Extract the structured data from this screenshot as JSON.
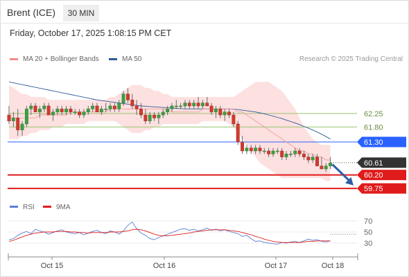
{
  "header": {
    "instrument": "Brent (ICE)",
    "timeframe": "30 MIN"
  },
  "datetime": "Friday, October 17, 2025 1:08:15 PM CET",
  "legend": {
    "ma20": {
      "label": "MA 20 + Bollinger Bands",
      "color": "#f08a8a"
    },
    "ma50": {
      "label": "MA 50",
      "color": "#2e5a96"
    }
  },
  "credit": "Research © 2025 Trading Central",
  "chart_data": [
    {
      "type": "candlestick",
      "x_ticks": [
        "Oct 15",
        "Oct 16",
        "Oct 17",
        "Oct 18"
      ],
      "levels": [
        {
          "value": 62.25,
          "label": "62.25",
          "color": "#97c46e",
          "style": "thin"
        },
        {
          "value": 61.8,
          "label": "61.80",
          "color": "#97c46e",
          "style": "thin"
        },
        {
          "value": 61.3,
          "label": "61.30",
          "color": "#2962ff",
          "style": "tag"
        },
        {
          "value": 60.61,
          "label": "60.61",
          "color": "#333333",
          "style": "dotted-tag"
        },
        {
          "value": 60.2,
          "label": "60.20",
          "color": "#e01b1b",
          "style": "thick-tag"
        },
        {
          "value": 59.75,
          "label": "59.75",
          "color": "#e01b1b",
          "style": "thick-tag"
        }
      ],
      "y_range": [
        59.5,
        63.7
      ],
      "last_price": 60.61,
      "forecast_arrow": {
        "from": 60.55,
        "to": 59.85,
        "color": "#2b5fa6"
      },
      "ohlc": [
        [
          62.2,
          62.5,
          61.9,
          62.0
        ],
        [
          62.0,
          62.3,
          61.8,
          62.1
        ],
        [
          62.1,
          62.4,
          61.5,
          61.7
        ],
        [
          61.7,
          62.0,
          61.5,
          61.9
        ],
        [
          61.9,
          62.5,
          61.8,
          62.4
        ],
        [
          62.4,
          62.6,
          62.2,
          62.5
        ],
        [
          62.5,
          62.6,
          62.3,
          62.3
        ],
        [
          62.3,
          62.5,
          62.1,
          62.4
        ],
        [
          62.4,
          62.6,
          62.3,
          62.5
        ],
        [
          62.5,
          62.6,
          62.2,
          62.2
        ],
        [
          62.2,
          62.4,
          62.0,
          62.3
        ],
        [
          62.3,
          62.5,
          62.2,
          62.4
        ],
        [
          62.4,
          62.5,
          62.2,
          62.3
        ],
        [
          62.3,
          62.5,
          62.2,
          62.4
        ],
        [
          62.4,
          62.5,
          62.2,
          62.3
        ],
        [
          62.3,
          62.4,
          62.2,
          62.3
        ],
        [
          62.3,
          62.4,
          62.1,
          62.2
        ],
        [
          62.2,
          62.4,
          62.1,
          62.3
        ],
        [
          62.3,
          62.5,
          62.2,
          62.4
        ],
        [
          62.4,
          62.6,
          62.3,
          62.5
        ],
        [
          62.5,
          62.6,
          62.3,
          62.3
        ],
        [
          62.3,
          62.5,
          62.2,
          62.4
        ],
        [
          62.4,
          62.6,
          62.3,
          62.4
        ],
        [
          62.4,
          62.6,
          62.3,
          62.5
        ],
        [
          62.5,
          62.6,
          62.3,
          62.4
        ],
        [
          62.4,
          62.7,
          62.3,
          62.6
        ],
        [
          62.6,
          63.0,
          62.5,
          62.9
        ],
        [
          62.9,
          63.1,
          62.6,
          62.7
        ],
        [
          62.7,
          62.9,
          62.4,
          62.5
        ],
        [
          62.5,
          62.7,
          62.2,
          62.4
        ],
        [
          62.4,
          62.6,
          62.1,
          62.2
        ],
        [
          62.2,
          62.4,
          61.9,
          62.0
        ],
        [
          62.0,
          62.3,
          61.9,
          62.2
        ],
        [
          62.2,
          62.3,
          62.0,
          62.1
        ],
        [
          62.1,
          62.3,
          61.9,
          62.2
        ],
        [
          62.2,
          62.4,
          62.1,
          62.3
        ],
        [
          62.3,
          62.5,
          62.2,
          62.4
        ],
        [
          62.4,
          62.6,
          62.3,
          62.5
        ],
        [
          62.5,
          62.7,
          62.4,
          62.5
        ],
        [
          62.5,
          62.6,
          62.4,
          62.5
        ],
        [
          62.5,
          62.7,
          62.4,
          62.6
        ],
        [
          62.6,
          62.7,
          62.4,
          62.5
        ],
        [
          62.5,
          62.7,
          62.4,
          62.6
        ],
        [
          62.6,
          62.8,
          62.4,
          62.5
        ],
        [
          62.5,
          62.7,
          62.4,
          62.6
        ],
        [
          62.6,
          62.8,
          62.5,
          62.5
        ],
        [
          62.5,
          62.6,
          62.2,
          62.3
        ],
        [
          62.3,
          62.5,
          62.1,
          62.4
        ],
        [
          62.4,
          62.5,
          62.1,
          62.2
        ],
        [
          62.2,
          62.4,
          62.0,
          62.3
        ],
        [
          62.3,
          62.4,
          62.1,
          62.2
        ],
        [
          62.2,
          62.3,
          61.8,
          61.9
        ],
        [
          61.9,
          62.0,
          61.2,
          61.3
        ],
        [
          61.3,
          61.5,
          60.9,
          61.0
        ],
        [
          61.0,
          61.2,
          60.9,
          61.1
        ],
        [
          61.1,
          61.2,
          60.9,
          61.0
        ],
        [
          61.0,
          61.2,
          60.9,
          61.1
        ],
        [
          61.1,
          61.2,
          60.9,
          61.0
        ],
        [
          61.0,
          61.1,
          60.9,
          61.0
        ],
        [
          61.0,
          61.1,
          60.8,
          60.9
        ],
        [
          60.9,
          61.1,
          60.8,
          61.0
        ],
        [
          61.0,
          61.1,
          60.9,
          61.0
        ],
        [
          61.0,
          61.1,
          60.7,
          60.8
        ],
        [
          60.8,
          61.0,
          60.7,
          60.9
        ],
        [
          60.9,
          61.0,
          60.8,
          60.9
        ],
        [
          60.9,
          61.1,
          60.8,
          61.0
        ],
        [
          61.0,
          61.1,
          60.8,
          60.9
        ],
        [
          60.9,
          61.0,
          60.7,
          60.8
        ],
        [
          60.8,
          60.9,
          60.6,
          60.7
        ],
        [
          60.7,
          60.9,
          60.6,
          60.8
        ],
        [
          60.8,
          60.9,
          60.5,
          60.5
        ],
        [
          60.5,
          60.8,
          60.4,
          60.4
        ],
        [
          60.4,
          60.6,
          60.3,
          60.5
        ],
        [
          60.5,
          60.8,
          60.4,
          60.6
        ]
      ],
      "ma20": [
        62.1,
        62.1,
        62.1,
        62.1,
        62.1,
        62.1,
        62.1,
        62.2,
        62.2,
        62.2,
        62.2,
        62.2,
        62.2,
        62.2,
        62.3,
        62.3,
        62.3,
        62.3,
        62.3,
        62.3,
        62.3,
        62.3,
        62.3,
        62.4,
        62.4,
        62.4,
        62.4,
        62.4,
        62.4,
        62.4,
        62.4,
        62.4,
        62.4,
        62.4,
        62.4,
        62.4,
        62.4,
        62.3,
        62.3,
        62.3,
        62.3,
        62.3,
        62.3,
        62.3,
        62.4,
        62.4,
        62.4,
        62.4,
        62.4,
        62.4,
        62.4,
        62.4,
        62.3,
        62.3,
        62.2,
        62.1,
        62.0,
        61.9,
        61.8,
        61.7,
        61.6,
        61.5,
        61.4,
        61.3,
        61.2,
        61.1,
        61.0,
        61.0,
        60.9,
        60.9,
        60.8,
        60.8,
        60.7,
        60.7
      ],
      "bb_upper": [
        63.2,
        63.1,
        63.0,
        62.9,
        62.9,
        62.8,
        62.8,
        62.8,
        62.8,
        62.7,
        62.7,
        62.7,
        62.7,
        62.7,
        62.7,
        62.7,
        62.7,
        62.7,
        62.7,
        62.7,
        62.7,
        62.7,
        62.7,
        62.8,
        62.8,
        62.9,
        63.0,
        63.1,
        63.2,
        63.2,
        63.2,
        63.1,
        63.1,
        63.0,
        63.0,
        62.9,
        62.9,
        62.8,
        62.8,
        62.8,
        62.8,
        62.8,
        62.8,
        62.8,
        62.8,
        62.8,
        62.8,
        62.8,
        62.8,
        62.8,
        62.8,
        62.8,
        62.9,
        63.0,
        63.1,
        63.2,
        63.3,
        63.3,
        63.3,
        63.3,
        63.2,
        63.1,
        63.0,
        62.8,
        62.6,
        62.4,
        62.1,
        61.8,
        61.6,
        61.4,
        61.3,
        61.2,
        61.2,
        61.2
      ],
      "bb_lower": [
        61.4,
        61.4,
        61.4,
        61.5,
        61.5,
        61.6,
        61.6,
        61.7,
        61.7,
        61.7,
        61.8,
        61.8,
        61.8,
        61.9,
        61.9,
        61.9,
        61.9,
        61.9,
        62.0,
        62.0,
        62.0,
        62.0,
        62.0,
        62.0,
        62.0,
        61.9,
        61.8,
        61.7,
        61.6,
        61.6,
        61.6,
        61.7,
        61.7,
        61.8,
        61.8,
        61.9,
        61.9,
        61.9,
        61.9,
        61.9,
        61.9,
        61.9,
        61.9,
        61.9,
        62.0,
        62.0,
        62.0,
        62.0,
        62.0,
        62.0,
        61.9,
        61.8,
        61.6,
        61.4,
        61.2,
        61.0,
        60.8,
        60.6,
        60.5,
        60.4,
        60.3,
        60.2,
        60.1,
        60.1,
        60.1,
        60.1,
        60.1,
        60.1,
        60.1,
        60.1,
        60.1,
        60.1,
        60.0,
        60.0
      ],
      "ma50": [
        63.3,
        63.27,
        63.24,
        63.21,
        63.18,
        63.15,
        63.12,
        63.09,
        63.06,
        63.03,
        63.0,
        62.97,
        62.94,
        62.91,
        62.88,
        62.85,
        62.82,
        62.79,
        62.76,
        62.73,
        62.7,
        62.68,
        62.66,
        62.64,
        62.62,
        62.6,
        62.58,
        62.56,
        62.54,
        62.52,
        62.5,
        62.49,
        62.48,
        62.47,
        62.46,
        62.45,
        62.44,
        62.43,
        62.42,
        62.41,
        62.4,
        62.4,
        62.4,
        62.4,
        62.4,
        62.4,
        62.4,
        62.4,
        62.4,
        62.4,
        62.4,
        62.39,
        62.38,
        62.36,
        62.34,
        62.32,
        62.3,
        62.27,
        62.24,
        62.2,
        62.16,
        62.12,
        62.08,
        62.03,
        61.98,
        61.93,
        61.88,
        61.82,
        61.76,
        61.7,
        61.63,
        61.56,
        61.48,
        61.4
      ]
    },
    {
      "type": "line",
      "legend": [
        {
          "name": "RSI",
          "color": "#5b7ed4"
        },
        {
          "name": "9MA",
          "color": "#e01b1b"
        }
      ],
      "y_ticks": [
        70,
        50,
        30
      ],
      "ylim": [
        10,
        80
      ],
      "series": [
        {
          "name": "RSI",
          "values": [
            36,
            38,
            44,
            48,
            51,
            47,
            55,
            52,
            50,
            46,
            49,
            52,
            54,
            50,
            48,
            47,
            49,
            45,
            48,
            51,
            53,
            49,
            47,
            52,
            50,
            46,
            52,
            62,
            68,
            56,
            48,
            44,
            38,
            36,
            40,
            43,
            46,
            49,
            52,
            55,
            56,
            53,
            55,
            52,
            54,
            57,
            53,
            55,
            52,
            54,
            51,
            49,
            47,
            42,
            44,
            38,
            33,
            34,
            31,
            30,
            29,
            28,
            31,
            30,
            32,
            33,
            31,
            34,
            37,
            35,
            36,
            33,
            32,
            34
          ]
        },
        {
          "name": "9MA",
          "values": [
            33,
            35,
            38,
            41,
            44,
            46,
            48,
            49,
            50,
            50,
            50,
            51,
            51,
            51,
            50,
            50,
            49,
            49,
            48,
            49,
            49,
            49,
            49,
            50,
            50,
            50,
            51,
            52,
            54,
            55,
            54,
            52,
            49,
            46,
            44,
            43,
            43,
            44,
            45,
            46,
            47,
            48,
            50,
            51,
            52,
            53,
            54,
            54,
            54,
            54,
            53,
            52,
            51,
            49,
            47,
            45,
            42,
            40,
            37,
            35,
            33,
            32,
            31,
            31,
            31,
            31,
            31,
            32,
            33,
            33,
            34,
            34,
            34,
            34
          ]
        }
      ]
    }
  ]
}
